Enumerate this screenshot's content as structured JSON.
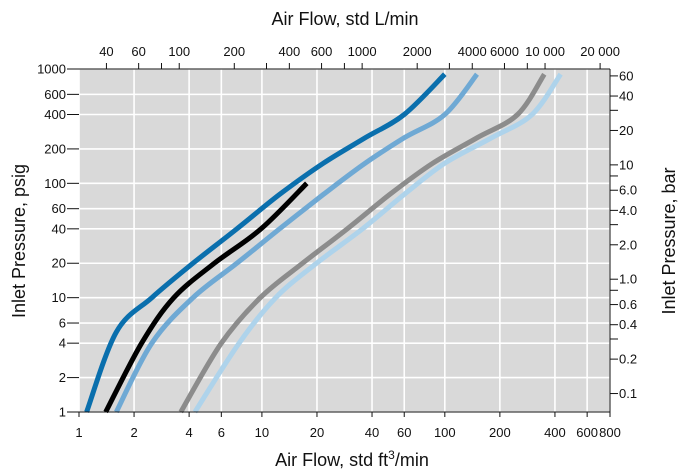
{
  "chart_data": {
    "type": "line",
    "scale": "log-log",
    "grid": true,
    "colors": {
      "plot_background": "#d9d9d9",
      "grid_line": "#ffffff",
      "axis_line": "#111111"
    },
    "axes": {
      "bottom": {
        "label_main": "Air Flow, std ft",
        "label_sup": "3",
        "label_tail": "/min",
        "range": [
          1,
          800
        ],
        "ticks": [
          1,
          2,
          4,
          6,
          10,
          20,
          40,
          60,
          100,
          200,
          400,
          600,
          800
        ],
        "tick_labels": [
          "1",
          "2",
          "4",
          "6",
          "10",
          "20",
          "40",
          "60",
          "100",
          "200",
          "400",
          "600",
          "800"
        ]
      },
      "top": {
        "label": "Air Flow, std L/min",
        "ticks": [
          40,
          60,
          80,
          100,
          200,
          300,
          400,
          600,
          800,
          1000,
          2000,
          3000,
          4000,
          6000,
          8000,
          10000,
          20000
        ],
        "labeled_ticks": [
          40,
          60,
          100,
          200,
          400,
          600,
          1000,
          2000,
          4000,
          6000,
          10000,
          20000
        ],
        "tick_labels": [
          "40",
          "60",
          "100",
          "200",
          "400",
          "600",
          "1000",
          "2000",
          "4000",
          "6000",
          "10 000",
          "20 000"
        ]
      },
      "left": {
        "label": "Inlet Pressure, psig",
        "range": [
          1,
          1000
        ],
        "ticks": [
          1,
          2,
          4,
          6,
          10,
          20,
          40,
          60,
          100,
          200,
          400,
          600,
          1000
        ],
        "tick_labels": [
          "1",
          "2",
          "4",
          "6",
          "10",
          "20",
          "40",
          "60",
          "100",
          "200",
          "400",
          "600",
          "1000"
        ]
      },
      "right": {
        "label": "Inlet Pressure, bar",
        "ticks": [
          0.1,
          0.2,
          0.4,
          0.6,
          1.0,
          2.0,
          4.0,
          6.0,
          10,
          20,
          40,
          60
        ],
        "tick_labels": [
          "0.1",
          "0.2",
          "0.4",
          "0.6",
          "1.0",
          "2.0",
          "4.0",
          "6.0",
          "10",
          "20",
          "40",
          "60"
        ],
        "minor_ticks": [
          0.3,
          0.8,
          3.0,
          8.0,
          30
        ]
      }
    },
    "series": [
      {
        "color": "#0a6fad",
        "x": [
          1.1,
          1.6,
          2.5,
          4.2,
          7.3,
          12.5,
          21.7,
          36.7,
          60,
          100
        ],
        "y": [
          1,
          5,
          10,
          20,
          40,
          80,
          150,
          250,
          400,
          900
        ]
      },
      {
        "color": "#000000",
        "x": [
          1.4,
          2.2,
          3.3,
          5.5,
          9.9,
          17.6
        ],
        "y": [
          1,
          4,
          10,
          20,
          40,
          100
        ]
      },
      {
        "color": "#6fa9d4",
        "x": [
          1.6,
          2.5,
          4.2,
          7.3,
          12.5,
          21.7,
          36.7,
          60,
          100,
          150
        ],
        "y": [
          1,
          4,
          10,
          20,
          40,
          80,
          150,
          250,
          400,
          900
        ]
      },
      {
        "color": "#8c8c8c",
        "x": [
          3.6,
          6.0,
          9.8,
          16.7,
          29.3,
          50,
          86,
          150,
          250,
          350
        ],
        "y": [
          1,
          4,
          10,
          20,
          40,
          80,
          150,
          250,
          400,
          900
        ]
      },
      {
        "color": "#aed3eb",
        "x": [
          4.3,
          7.5,
          11.9,
          19.9,
          35.5,
          60,
          100,
          180,
          300,
          430
        ],
        "y": [
          1,
          4,
          10,
          20,
          40,
          80,
          150,
          250,
          400,
          900
        ]
      }
    ]
  }
}
